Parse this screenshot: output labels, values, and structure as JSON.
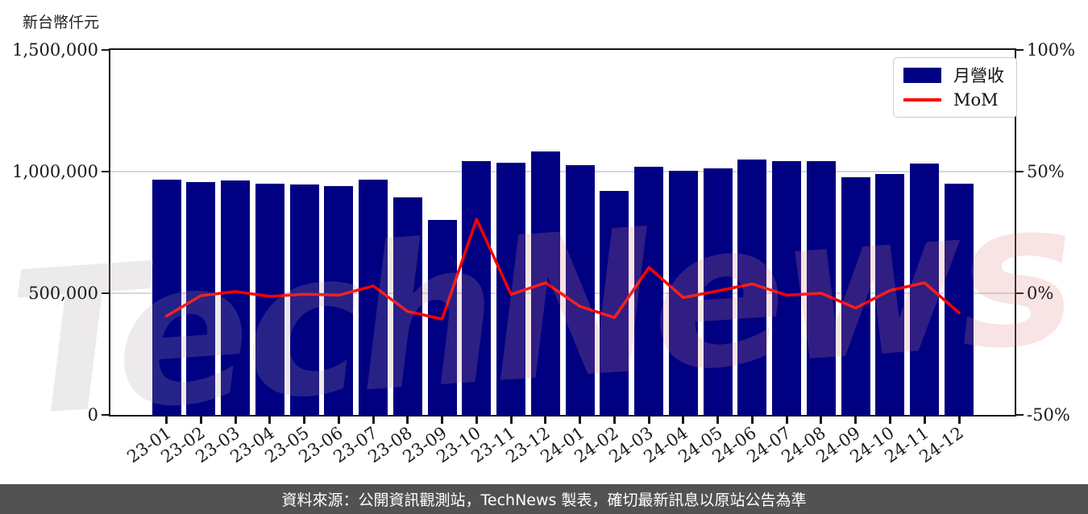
{
  "watermark": "TechNews",
  "footer": {
    "text": "資料來源：公開資訊觀測站，TechNews 製表，確切最新訊息以原站公告為準"
  },
  "colors": {
    "bar": "#000082",
    "line": "#fe0000",
    "grid": "#d8d8d8",
    "axis": "#161616",
    "footer_bg": "#525252",
    "footer_text": "#ffffff",
    "watermark_gray": "#a8a8a8",
    "watermark_pink": "#e08888"
  },
  "chart_data": {
    "type": "bar",
    "subtype": "bar+line combo, dual y-axes",
    "categories": [
      "23-01",
      "23-02",
      "23-03",
      "23-04",
      "23-05",
      "23-06",
      "23-07",
      "23-08",
      "23-09",
      "23-10",
      "23-11",
      "23-12",
      "24-01",
      "24-02",
      "24-03",
      "24-04",
      "24-05",
      "24-06",
      "24-07",
      "24-08",
      "24-09",
      "24-10",
      "24-11",
      "24-12"
    ],
    "series": [
      {
        "name": "月營收",
        "type": "bar",
        "axis": "left",
        "unit": "新台幣仟元",
        "values": [
          968000,
          958000,
          965000,
          952000,
          948000,
          940000,
          968000,
          895000,
          800000,
          1043000,
          1038000,
          1083000,
          1025000,
          922000,
          1020000,
          1002000,
          1012000,
          1050000,
          1042000,
          1042000,
          978000,
          990000,
          1033000,
          950000
        ]
      },
      {
        "name": "MoM",
        "type": "line",
        "axis": "right",
        "unit": "%",
        "values": [
          -9.4,
          -1.0,
          0.7,
          -1.3,
          -0.4,
          -0.8,
          3.0,
          -7.5,
          -10.6,
          30.4,
          -0.5,
          4.3,
          -5.4,
          -10.0,
          10.6,
          -1.8,
          1.0,
          3.8,
          -0.8,
          0.0,
          -6.1,
          1.2,
          4.3,
          -8.0
        ]
      }
    ],
    "left_axis": {
      "title": "新台幣仟元",
      "range": [
        0,
        1500000
      ],
      "ticks": [
        {
          "label": "0",
          "value": 0
        },
        {
          "label": "500,000",
          "value": 500000
        },
        {
          "label": "1,000,000",
          "value": 1000000
        },
        {
          "label": "1,500,000",
          "value": 1500000
        }
      ],
      "grid_values": [
        500000,
        1000000
      ]
    },
    "right_axis": {
      "range": [
        -50,
        100
      ],
      "ticks": [
        {
          "label": "-50%",
          "value": -50
        },
        {
          "label": "0%",
          "value": 0
        },
        {
          "label": "50%",
          "value": 50
        },
        {
          "label": "100%",
          "value": 100
        }
      ]
    },
    "legend": {
      "position": "top-right",
      "entries": [
        {
          "label": "月營收",
          "type": "bar"
        },
        {
          "label": "MoM",
          "type": "line"
        }
      ]
    }
  }
}
